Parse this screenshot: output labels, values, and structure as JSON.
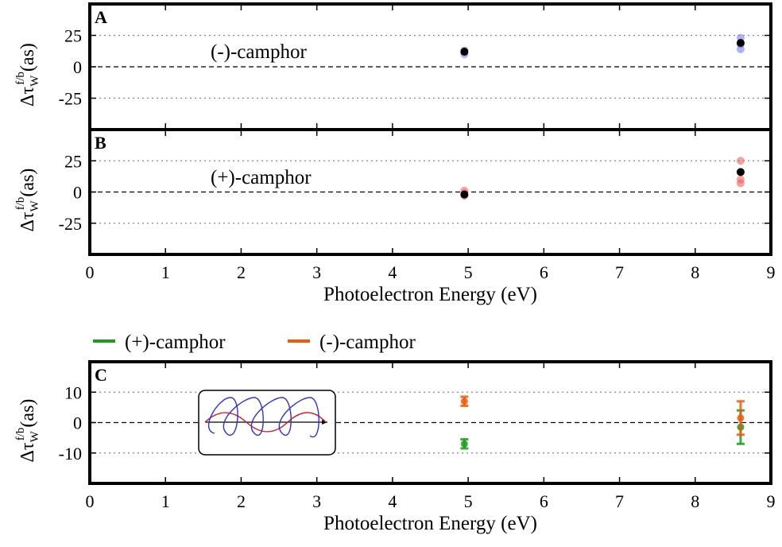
{
  "chart_data": [
    {
      "type": "scatter",
      "label": "A",
      "annotation": "(-)-camphor",
      "xlim": [
        0,
        9
      ],
      "xticks": [
        0,
        1,
        2,
        3,
        4,
        5,
        6,
        7,
        8,
        9
      ],
      "show_xticklabels": false,
      "ylim": [
        -50,
        50
      ],
      "yticks": [
        -25,
        0,
        25
      ],
      "grid": true,
      "ylabel": {
        "main": "Δτ",
        "sub": "W",
        "sup": "f/b",
        "unit": "(as)"
      },
      "series": [
        {
          "color": "#7b7bf0",
          "x": [
            4.95,
            4.95,
            8.6,
            8.6,
            8.6
          ],
          "values": [
            13,
            10,
            23,
            18,
            14
          ]
        },
        {
          "color": "#000000",
          "x": [
            4.95,
            8.6
          ],
          "values": [
            12,
            19
          ]
        }
      ]
    },
    {
      "type": "scatter",
      "label": "B",
      "annotation": "(+)-camphor",
      "xlim": [
        0,
        9
      ],
      "xticks": [
        0,
        1,
        2,
        3,
        4,
        5,
        6,
        7,
        8,
        9
      ],
      "show_xticklabels": true,
      "xlabel": "Photoelectron Energy (eV)",
      "ylim": [
        -50,
        50
      ],
      "yticks": [
        -25,
        0,
        25
      ],
      "grid": true,
      "ylabel": {
        "main": "Δτ",
        "sub": "W",
        "sup": "f/b",
        "unit": "(as)"
      },
      "series": [
        {
          "color": "#f06060",
          "x": [
            4.95,
            4.95,
            4.95,
            8.6,
            8.6,
            8.6
          ],
          "values": [
            1,
            -3,
            -1,
            25,
            10,
            7
          ]
        },
        {
          "color": "#000000",
          "x": [
            4.95,
            8.6
          ],
          "values": [
            -2,
            16
          ]
        }
      ]
    },
    {
      "type": "errorbar",
      "label": "C",
      "xlim": [
        0,
        9
      ],
      "xticks": [
        0,
        1,
        2,
        3,
        4,
        5,
        6,
        7,
        8,
        9
      ],
      "show_xticklabels": true,
      "xlabel": "Photoelectron Energy (eV)",
      "ylim": [
        -20,
        20
      ],
      "yticks": [
        -10,
        0,
        10
      ],
      "grid": true,
      "ylabel": {
        "main": "Δτ",
        "sub": "W",
        "sup": "f/b",
        "unit": "(as)"
      },
      "series": [
        {
          "name": "(+)-camphor",
          "color": "#1a9e1a",
          "x": [
            4.95,
            8.6
          ],
          "values": [
            -7,
            -1.5
          ],
          "errors": [
            1.5,
            5.5
          ]
        },
        {
          "name": "(-)-camphor",
          "color": "#f05a0a",
          "x": [
            4.95,
            8.6
          ],
          "values": [
            7,
            1.5
          ],
          "errors": [
            1.5,
            5.5
          ]
        }
      ]
    }
  ]
}
